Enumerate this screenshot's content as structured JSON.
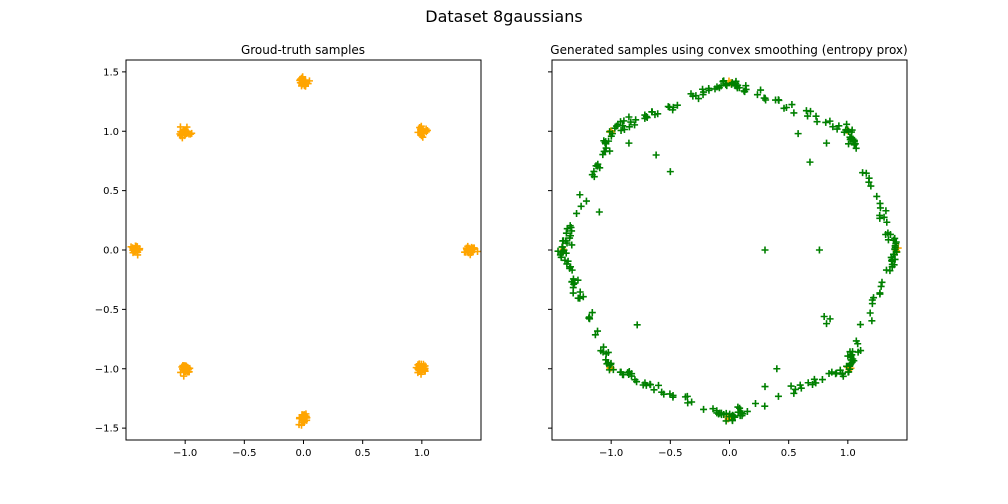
{
  "figure": {
    "title": "Dataset 8gaussians"
  },
  "colors": {
    "ground_truth": "#FFA500",
    "generated": "#008000",
    "axes": "#000000",
    "background": "#ffffff"
  },
  "chart_data": [
    {
      "type": "scatter",
      "title": "Groud-truth samples",
      "xlabel": "",
      "ylabel": "",
      "xlim": [
        -1.5,
        1.5
      ],
      "ylim": [
        -1.6,
        1.6
      ],
      "xticks": [
        "−1.0",
        "−0.5",
        "0.0",
        "0.5",
        "1.0"
      ],
      "xtick_values": [
        -1.0,
        -0.5,
        0.0,
        0.5,
        1.0
      ],
      "yticks": [
        "−1.5",
        "−1.0",
        "−0.5",
        "0.0",
        "0.5",
        "1.0",
        "1.5"
      ],
      "ytick_values": [
        -1.5,
        -1.0,
        -0.5,
        0.0,
        0.5,
        1.0,
        1.5
      ],
      "grid": false,
      "marker": "+",
      "series": [
        {
          "color": "#FFA500",
          "clusters": [
            [
              1.414,
              0.0
            ],
            [
              1.0,
              1.0
            ],
            [
              0.0,
              1.414
            ],
            [
              -1.0,
              1.0
            ],
            [
              -1.414,
              0.0
            ],
            [
              -1.0,
              -1.0
            ],
            [
              0.0,
              -1.414
            ],
            [
              1.0,
              -1.0
            ]
          ],
          "cluster_spread": 0.02
        }
      ]
    },
    {
      "type": "scatter",
      "title": "Generated samples using convex smoothing (entropy prox)",
      "xlabel": "",
      "ylabel": "",
      "xlim": [
        -1.5,
        1.5
      ],
      "ylim": [
        -1.6,
        1.6
      ],
      "xticks": [
        "−1.0",
        "−0.5",
        "0.0",
        "0.5",
        "1.0"
      ],
      "xtick_values": [
        -1.0,
        -0.5,
        0.0,
        0.5,
        1.0
      ],
      "ytick_values": [
        -1.5,
        -1.0,
        -0.5,
        0.0,
        0.5,
        1.0,
        1.5
      ],
      "grid": false,
      "marker": "+",
      "series": [
        {
          "color": "#FFA500",
          "points": [
            [
              1.414,
              0.0
            ],
            [
              1.0,
              1.0
            ],
            [
              0.0,
              1.414
            ],
            [
              -1.0,
              1.0
            ],
            [
              -1.414,
              0.0
            ],
            [
              -1.0,
              -1.0
            ],
            [
              0.0,
              -1.414
            ],
            [
              1.0,
              -1.0
            ]
          ]
        },
        {
          "color": "#008000",
          "octagon_vertices": [
            [
              1.414,
              0.0
            ],
            [
              1.0,
              1.0
            ],
            [
              0.0,
              1.414
            ],
            [
              -1.0,
              1.0
            ],
            [
              -1.414,
              0.0
            ],
            [
              -1.0,
              -1.0
            ],
            [
              0.0,
              -1.414
            ],
            [
              1.0,
              -1.0
            ]
          ],
          "outliers": [
            [
              -0.85,
              1.12
            ],
            [
              -0.63,
              1.14
            ],
            [
              -0.48,
              1.18
            ],
            [
              -0.85,
              0.9
            ],
            [
              -0.62,
              0.8
            ],
            [
              -0.5,
              0.66
            ],
            [
              -1.1,
              0.32
            ],
            [
              -0.78,
              -0.63
            ],
            [
              0.58,
              0.98
            ],
            [
              0.82,
              0.9
            ],
            [
              0.68,
              0.74
            ],
            [
              0.3,
              0.0
            ],
            [
              0.76,
              0.0
            ],
            [
              0.8,
              -0.56
            ],
            [
              0.85,
              -0.58
            ],
            [
              0.82,
              -0.62
            ],
            [
              0.4,
              -1.0
            ],
            [
              0.3,
              -1.15
            ],
            [
              -0.32,
              -1.28
            ],
            [
              -0.6,
              -1.14
            ]
          ]
        }
      ]
    }
  ]
}
